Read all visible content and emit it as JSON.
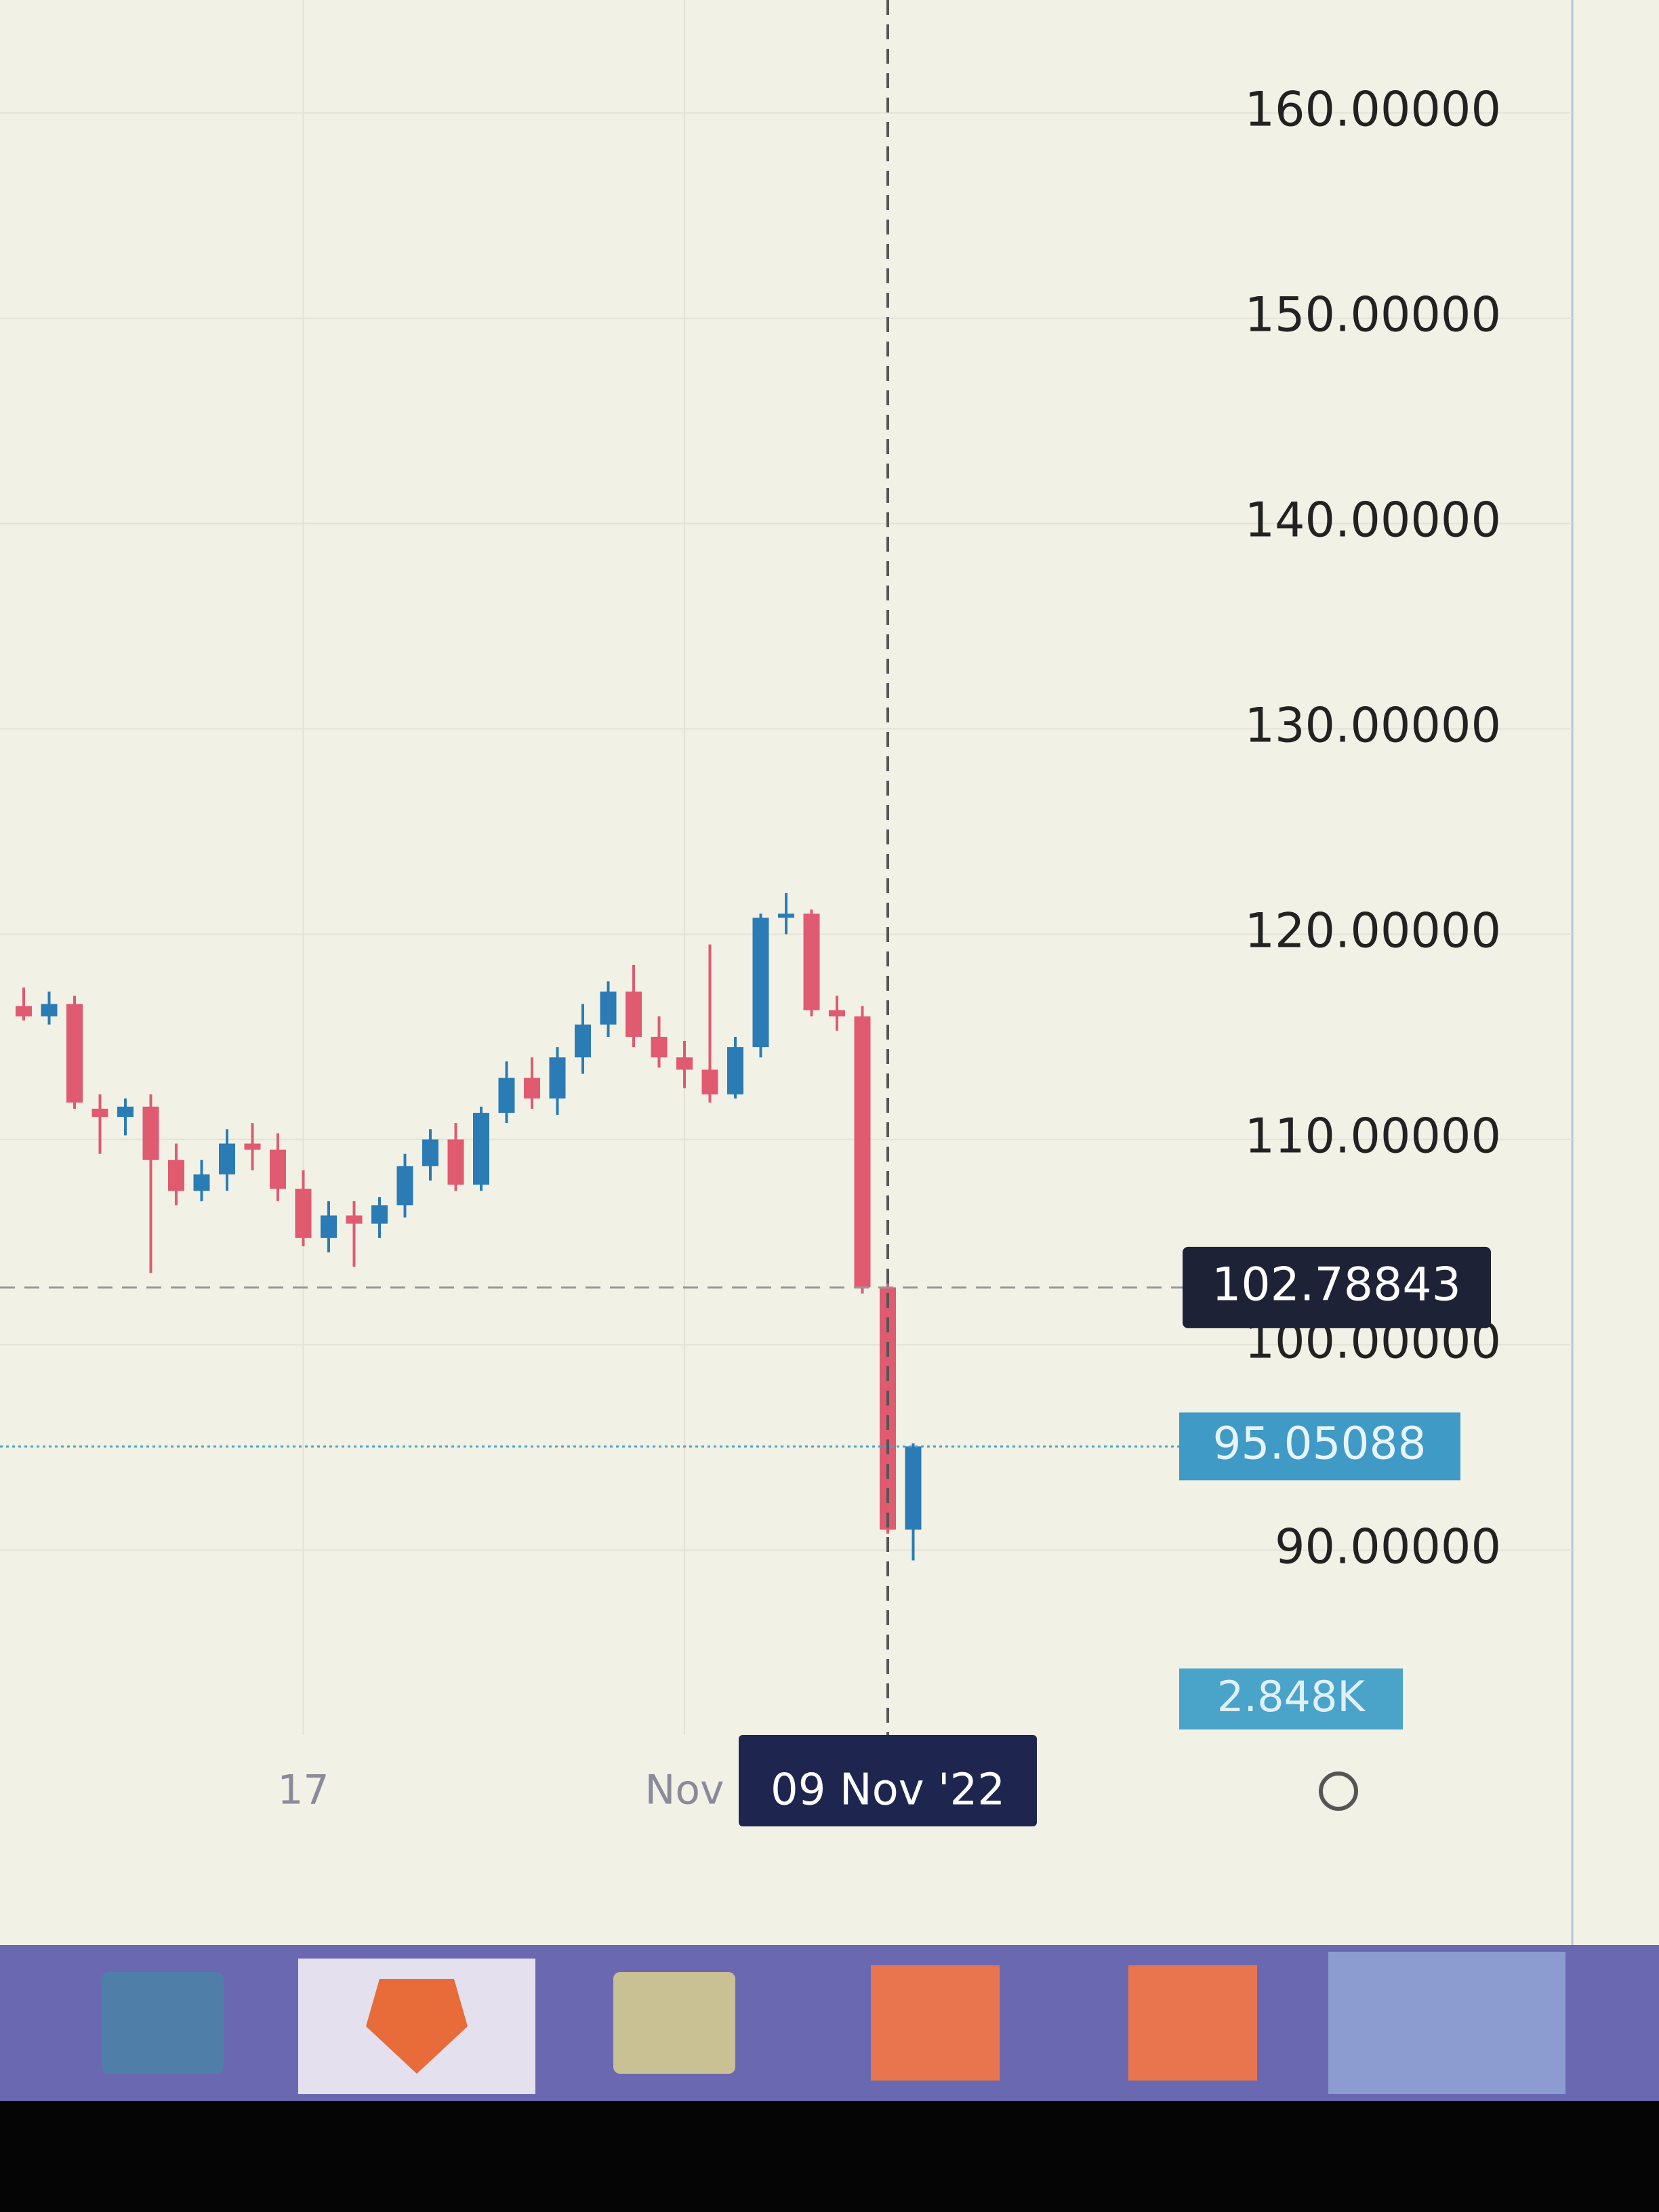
{
  "chart_data": {
    "type": "candlestick",
    "open": [
      116.5,
      116.0,
      116.6,
      111.5,
      111.1,
      111.6,
      109.0,
      107.5,
      108.3,
      109.8,
      109.5,
      107.6,
      105.2,
      106.3,
      105.9,
      106.8,
      108.7,
      110.0,
      107.8,
      111.3,
      113.0,
      112.0,
      114.0,
      115.6,
      117.2,
      115.0,
      114.0,
      113.4,
      112.2,
      114.5,
      120.8,
      121.0,
      116.3,
      116.0,
      102.8,
      91.0
    ],
    "high": [
      117.4,
      117.2,
      117.0,
      112.2,
      112.0,
      112.2,
      109.8,
      109.0,
      110.5,
      110.8,
      110.3,
      108.5,
      107.0,
      107.0,
      107.2,
      109.3,
      110.5,
      110.8,
      111.6,
      113.8,
      114.0,
      114.5,
      116.6,
      117.7,
      118.5,
      116.0,
      114.8,
      119.5,
      115.0,
      121.0,
      122.0,
      121.2,
      117.0,
      116.5,
      103.0,
      95.2
    ],
    "low": [
      115.8,
      115.6,
      111.5,
      109.3,
      110.2,
      103.5,
      106.8,
      107.0,
      107.5,
      108.5,
      107.0,
      104.8,
      104.5,
      103.8,
      105.2,
      106.2,
      108.0,
      107.5,
      107.5,
      110.8,
      111.5,
      111.2,
      113.2,
      115.0,
      114.5,
      113.5,
      112.5,
      111.8,
      112.0,
      114.0,
      120.0,
      116.0,
      115.3,
      102.5,
      90.8,
      89.5
    ],
    "close": [
      116.0,
      116.6,
      111.8,
      111.1,
      111.6,
      109.0,
      107.5,
      108.3,
      109.8,
      109.5,
      107.6,
      105.2,
      106.3,
      105.9,
      106.8,
      108.7,
      110.0,
      107.8,
      111.3,
      113.0,
      112.0,
      114.0,
      115.6,
      117.2,
      115.0,
      114.0,
      113.4,
      112.2,
      114.5,
      120.8,
      121.0,
      116.3,
      116.0,
      102.8,
      91.0,
      95.05088
    ],
    "up_color": "#2b7bb5",
    "down_color": "#e05a70",
    "ylim": [
      81,
      165.5
    ],
    "yticks": [
      {
        "value": 90,
        "label": "90.00000"
      },
      {
        "value": 100,
        "label": "100.00000"
      },
      {
        "value": 110,
        "label": "110.00000"
      },
      {
        "value": 120,
        "label": "120.00000"
      },
      {
        "value": 130,
        "label": "130.00000"
      },
      {
        "value": 140,
        "label": "140.00000"
      },
      {
        "value": 150,
        "label": "150.00000"
      },
      {
        "value": 160,
        "label": "160.00000"
      }
    ],
    "xticks": [
      {
        "value": 11,
        "label": "17"
      },
      {
        "value": 26,
        "label": "Nov"
      }
    ],
    "crosshair": {
      "x": 34,
      "value": 102.78843,
      "date": "09 Nov '22"
    },
    "last_price": 95.05088,
    "last_volume": {
      "value": 2848,
      "label": "2.848K"
    },
    "grid": true
  }
}
